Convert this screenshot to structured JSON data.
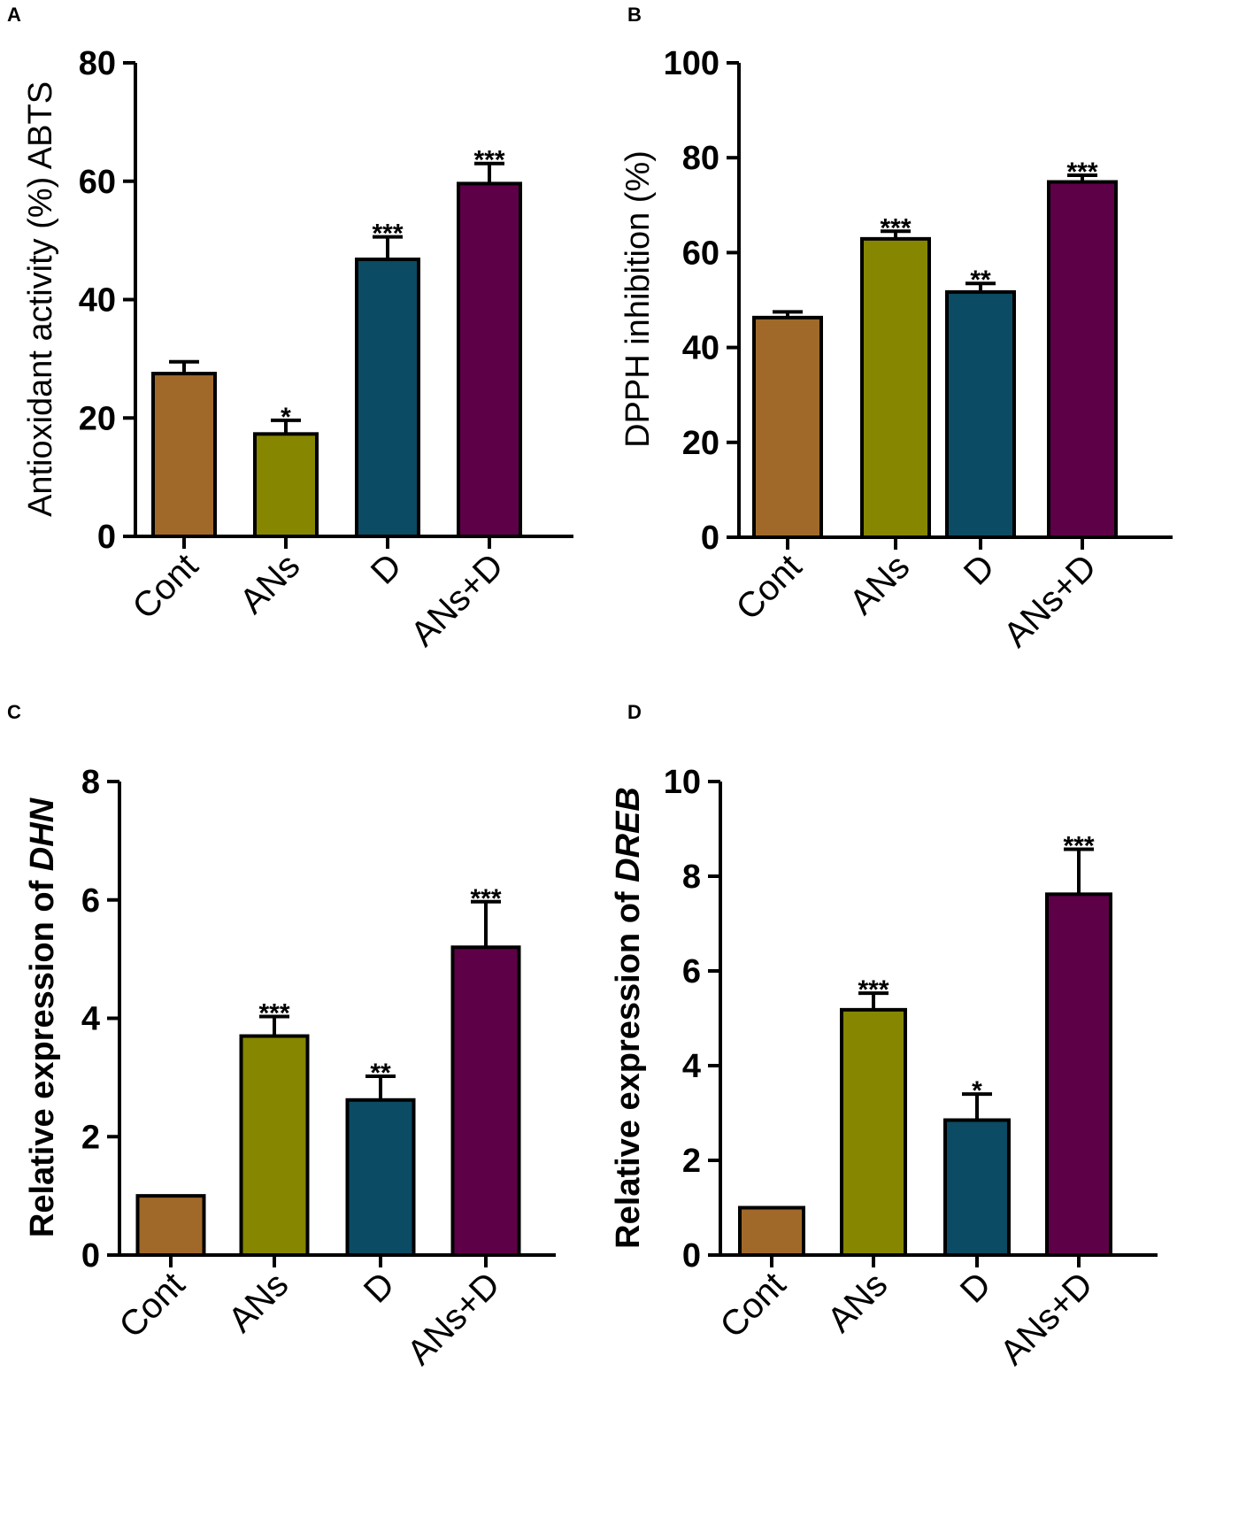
{
  "colors": {
    "Cont": "#a0692a",
    "ANs": "#868600",
    "D": "#0b4b63",
    "ANs+D": "#5e0047"
  },
  "chart_data": [
    {
      "panel": "A",
      "type": "bar",
      "ylabel": "Antioxidant activity (%) ABTS",
      "ylabel_style": "normal",
      "ylim": [
        0,
        80
      ],
      "yticks": [
        "0",
        "20",
        "40",
        "60",
        "80"
      ],
      "yticks_values": [
        0,
        20,
        40,
        60,
        80
      ],
      "categories": [
        "Cont",
        "ANs",
        "D",
        "ANs+D"
      ],
      "values": [
        27.5,
        17.3,
        46.8,
        59.6
      ],
      "errors": [
        2.0,
        2.3,
        3.8,
        3.4
      ],
      "significance": [
        "",
        "*",
        "***",
        "***"
      ]
    },
    {
      "panel": "B",
      "type": "bar",
      "ylabel": "DPPH inhibition (%)",
      "ylabel_style": "normal",
      "ylim": [
        0,
        100
      ],
      "yticks": [
        "0",
        "20",
        "40",
        "60",
        "80",
        "100"
      ],
      "yticks_values": [
        0,
        20,
        40,
        60,
        80,
        100
      ],
      "categories": [
        "Cont",
        "ANs",
        "D",
        "ANs+D"
      ],
      "values": [
        46.3,
        62.9,
        51.7,
        74.9
      ],
      "errors": [
        1.2,
        1.6,
        1.8,
        1.4
      ],
      "significance": [
        "",
        "***",
        "**",
        "***"
      ]
    },
    {
      "panel": "C",
      "type": "bar",
      "ylabel_prefix": "Relative expression of ",
      "ylabel_gene": "DHN",
      "ylabel_style": "bold",
      "ylim": [
        0,
        8
      ],
      "yticks": [
        "0",
        "2",
        "4",
        "6",
        "8"
      ],
      "yticks_values": [
        0,
        2,
        4,
        6,
        8
      ],
      "categories": [
        "Cont",
        "ANs",
        "D",
        "ANs+D"
      ],
      "values": [
        1.0,
        3.7,
        2.62,
        5.2
      ],
      "errors": [
        0,
        0.33,
        0.4,
        0.77
      ],
      "significance": [
        "",
        "***",
        "**",
        "***"
      ]
    },
    {
      "panel": "D",
      "type": "bar",
      "ylabel_prefix": "Relative expression of ",
      "ylabel_gene": "DREB",
      "ylabel_style": "bold",
      "ylim": [
        0,
        10
      ],
      "yticks": [
        "0",
        "2",
        "4",
        "6",
        "8",
        "10"
      ],
      "yticks_values": [
        0,
        2,
        4,
        6,
        8,
        10
      ],
      "categories": [
        "Cont",
        "ANs",
        "D",
        "ANs+D"
      ],
      "values": [
        1.0,
        5.18,
        2.85,
        7.62
      ],
      "errors": [
        0,
        0.35,
        0.55,
        0.95
      ],
      "significance": [
        "",
        "***",
        "*",
        "***"
      ]
    }
  ]
}
